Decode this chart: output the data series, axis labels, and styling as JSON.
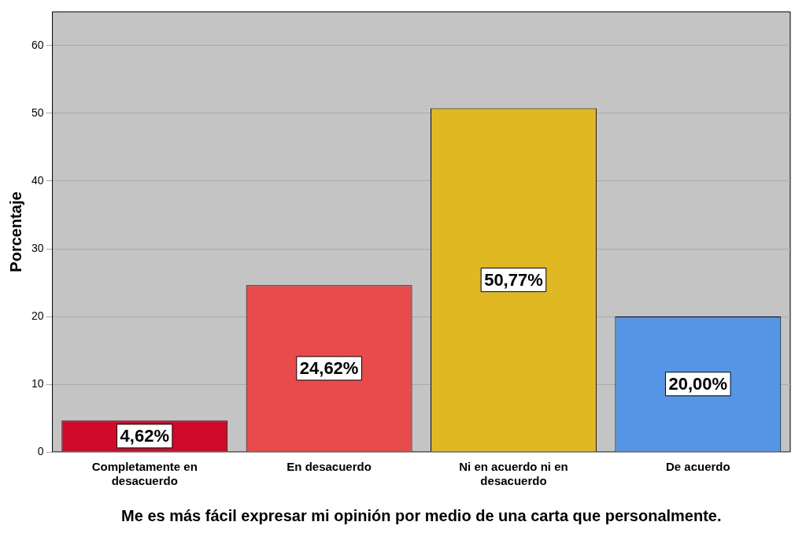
{
  "chart_data": {
    "type": "bar",
    "xlabel": "Me es más fácil expresar mi opinión por medio de una carta que personalmente.",
    "ylabel": "Porcentaje",
    "categories": [
      "Completamente en desacuerdo",
      "En desacuerdo",
      "Ni en acuerdo ni en desacuerdo",
      "De acuerdo"
    ],
    "values": [
      4.62,
      24.62,
      50.77,
      20.0
    ],
    "colors": [
      "#d20a2a",
      "#e94b4b",
      "#dfb822",
      "#5496e5"
    ],
    "value_labels": [
      "4,62%",
      "24,62%",
      "50,77%",
      "20,00%"
    ],
    "ylim": [
      0,
      65
    ],
    "yticks": [
      0,
      10,
      20,
      30,
      40,
      50,
      60
    ],
    "grid": "y",
    "legend": false
  }
}
